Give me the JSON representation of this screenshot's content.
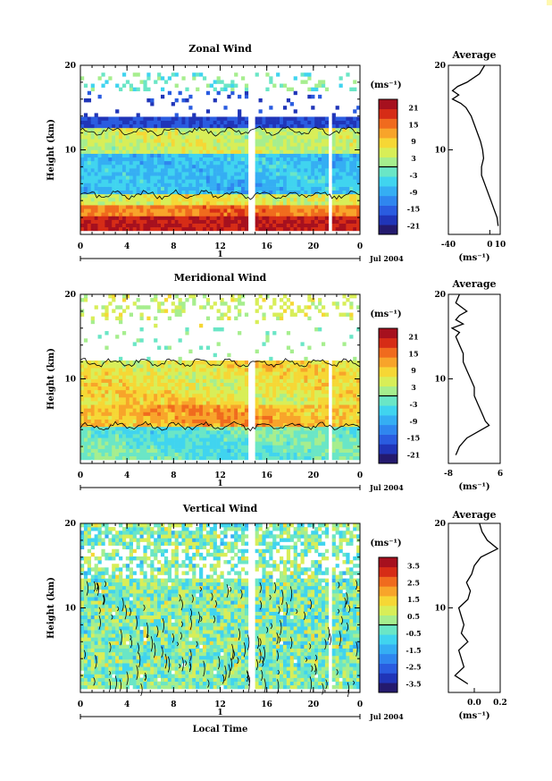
{
  "corner_color": "#fff8b0",
  "chart_data": [
    {
      "type": "heatmap",
      "title": "Zonal Wind",
      "ylabel": "Height (km)",
      "xlabel": "",
      "x_ticks": [
        "0",
        "4",
        "8",
        "12",
        "16",
        "20",
        "0"
      ],
      "y_ticks": [
        "10",
        "20"
      ],
      "ylim": [
        0,
        20
      ],
      "xlim_hours": [
        0,
        24
      ],
      "day_axis_label": "1",
      "date_label": "Jul 2004",
      "colorbar": {
        "unit": "(ms⁻¹)",
        "ticks": [
          "21",
          "15",
          "9",
          "3",
          "-3",
          "-9",
          "-15",
          "-21"
        ],
        "range": [
          -24,
          24
        ],
        "colors": [
          "#241a6e",
          "#2035b8",
          "#2a5ce0",
          "#2f86ef",
          "#35aef3",
          "#40d4ef",
          "#6ae6c6",
          "#a6ee8e",
          "#d8ee58",
          "#f6d735",
          "#f8a42a",
          "#f06b1e",
          "#d62c16",
          "#a6101e"
        ]
      },
      "average": {
        "title": "Average",
        "xlabel": "(ms⁻¹)",
        "x_ticks": [
          "-40",
          "0",
          "10"
        ],
        "xlim": [
          -40,
          10
        ],
        "heights": [
          1,
          2,
          3,
          4,
          5,
          6,
          7,
          8,
          9,
          10,
          11,
          12,
          13,
          14,
          15,
          15.5,
          16,
          16.5,
          17,
          17.5,
          18,
          19,
          20
        ],
        "values": [
          8,
          7,
          4,
          1,
          -2,
          -5,
          -8,
          -8,
          -6,
          -7,
          -9,
          -12,
          -15,
          -18,
          -23,
          -28,
          -36,
          -30,
          -36,
          -31,
          -22,
          -10,
          -5
        ]
      }
    },
    {
      "type": "heatmap",
      "title": "Meridional Wind",
      "ylabel": "Height (km)",
      "xlabel": "",
      "x_ticks": [
        "0",
        "4",
        "8",
        "12",
        "16",
        "20",
        "0"
      ],
      "y_ticks": [
        "10",
        "20"
      ],
      "ylim": [
        0,
        20
      ],
      "xlim_hours": [
        0,
        24
      ],
      "day_axis_label": "1",
      "date_label": "Jul 2004",
      "colorbar": {
        "unit": "(ms⁻¹)",
        "ticks": [
          "21",
          "15",
          "9",
          "3",
          "-3",
          "-9",
          "-15",
          "-21"
        ],
        "range": [
          -24,
          24
        ],
        "colors": [
          "#241a6e",
          "#2035b8",
          "#2a5ce0",
          "#2f86ef",
          "#35aef3",
          "#40d4ef",
          "#6ae6c6",
          "#a6ee8e",
          "#d8ee58",
          "#f6d735",
          "#f8a42a",
          "#f06b1e",
          "#d62c16",
          "#a6101e"
        ]
      },
      "average": {
        "title": "Average",
        "xlabel": "(ms⁻¹)",
        "x_ticks": [
          "-8",
          "6"
        ],
        "xlim": [
          -8,
          6
        ],
        "heights": [
          1,
          2,
          3,
          4,
          4.5,
          5,
          6,
          7,
          8,
          9,
          10,
          11,
          12,
          13,
          14,
          15,
          15.5,
          16,
          16.5,
          17,
          17.5,
          18,
          19,
          20
        ],
        "values": [
          -6,
          -5,
          -3,
          1,
          3,
          2,
          1,
          0,
          -1,
          -1,
          -2,
          -3,
          -4,
          -4,
          -5,
          -6,
          -5,
          -7,
          -4,
          -6,
          -5,
          -3,
          -6,
          -5
        ]
      }
    },
    {
      "type": "heatmap",
      "title": "Vertical Wind",
      "ylabel": "Height (km)",
      "xlabel": "Local Time",
      "x_ticks": [
        "0",
        "4",
        "8",
        "12",
        "16",
        "20",
        "0"
      ],
      "y_ticks": [
        "10",
        "20"
      ],
      "ylim": [
        0,
        20
      ],
      "xlim_hours": [
        0,
        24
      ],
      "day_axis_label": "1",
      "date_label": "Jul 2004",
      "colorbar": {
        "unit": "(ms⁻¹)",
        "ticks": [
          "3.5",
          "2.5",
          "1.5",
          "0.5",
          "-0.5",
          "-1.5",
          "-2.5",
          "-3.5"
        ],
        "range": [
          -4,
          4
        ],
        "colors": [
          "#241a6e",
          "#2035b8",
          "#2a5ce0",
          "#2f86ef",
          "#35aef3",
          "#40d4ef",
          "#6ae6c6",
          "#a6ee8e",
          "#d8ee58",
          "#f6d735",
          "#f8a42a",
          "#f06b1e",
          "#d62c16",
          "#a6101e"
        ]
      },
      "average": {
        "title": "Average",
        "xlabel": "(ms⁻¹)",
        "x_ticks": [
          "0.0",
          "0.2"
        ],
        "xlim": [
          -0.2,
          0.2
        ],
        "heights": [
          1,
          2,
          3,
          4,
          5,
          6,
          7,
          8,
          9,
          10,
          11,
          12,
          13,
          14,
          15,
          16,
          17,
          18,
          19,
          20
        ],
        "values": [
          -0.05,
          -0.15,
          -0.08,
          -0.1,
          -0.12,
          -0.05,
          -0.1,
          -0.08,
          -0.1,
          -0.12,
          -0.05,
          -0.03,
          -0.06,
          -0.02,
          0.0,
          0.05,
          0.18,
          0.1,
          0.06,
          0.04
        ]
      }
    }
  ]
}
